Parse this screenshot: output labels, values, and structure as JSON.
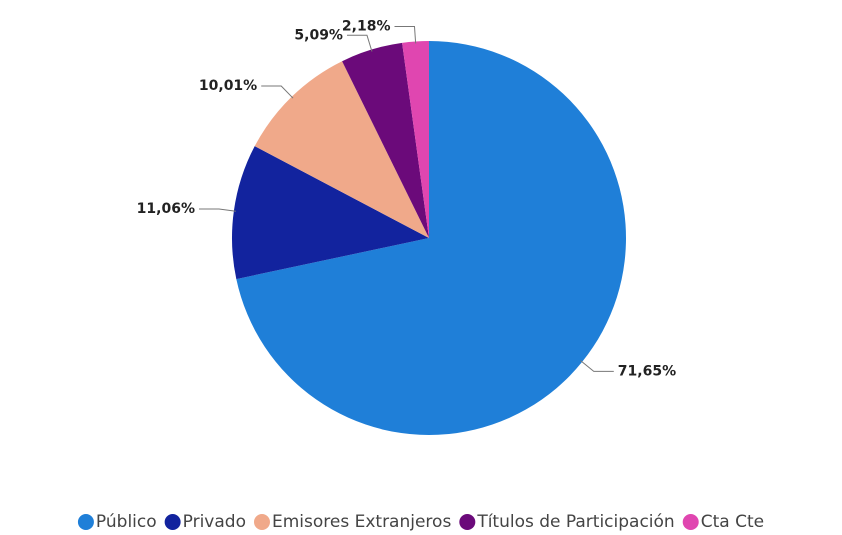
{
  "chart_data": {
    "type": "pie",
    "categories": [
      "Público",
      "Privado",
      "Emisores Extranjeros",
      "Títulos de Participación",
      "Cta Cte"
    ],
    "values": [
      71.65,
      11.06,
      10.01,
      5.09,
      2.18
    ],
    "value_labels": [
      "71,65%",
      "11,06%",
      "10,01%",
      "5,09%",
      "2,18%"
    ],
    "colors": [
      "#1f7fd8",
      "#12239e",
      "#f0a98a",
      "#6b0a7a",
      "#e046b0"
    ],
    "legend": "bottom"
  }
}
